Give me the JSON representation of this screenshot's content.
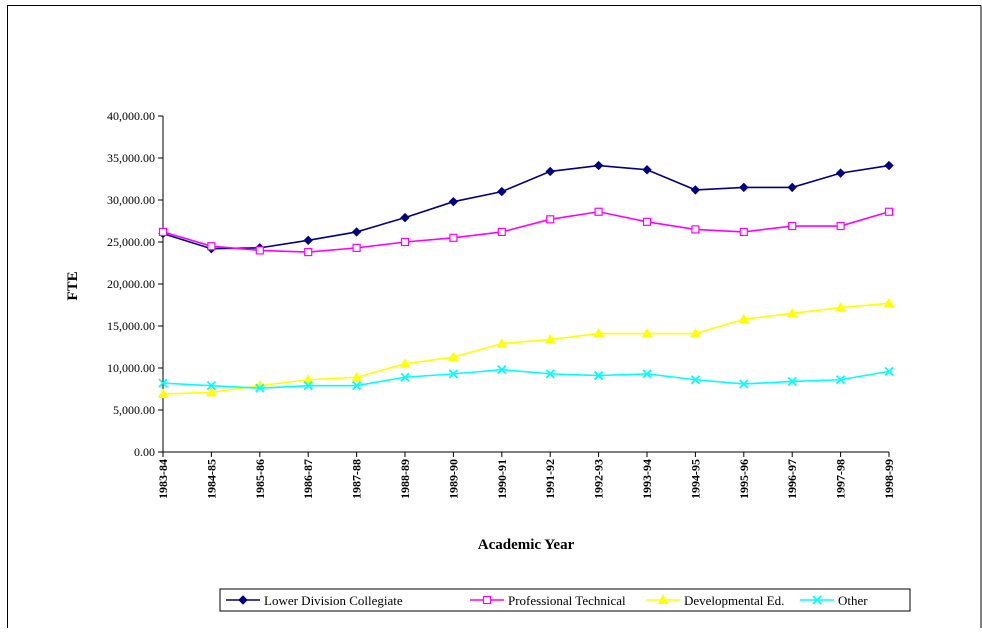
{
  "chart_data": {
    "type": "line",
    "title": "",
    "xlabel": "Academic Year",
    "ylabel": "FTE",
    "ylim": [
      0,
      40000
    ],
    "y_ticks": [
      "0.00",
      "5,000.00",
      "10,000.00",
      "15,000.00",
      "20,000.00",
      "25,000.00",
      "30,000.00",
      "35,000.00",
      "40,000.00"
    ],
    "y_tick_values": [
      0,
      5000,
      10000,
      15000,
      20000,
      25000,
      30000,
      35000,
      40000
    ],
    "categories": [
      "1983-84",
      "1984-85",
      "1985-86",
      "1986-87",
      "1987-88",
      "1988-89",
      "1989-90",
      "1990-91",
      "1991-92",
      "1992-93",
      "1993-94",
      "1994-95",
      "1995-96",
      "1996-97",
      "1997-98",
      "1998-99"
    ],
    "grid": false,
    "legend_position": "bottom",
    "series": [
      {
        "name": "Lower Division Collegiate",
        "color": "#000080",
        "marker": "diamond",
        "values": [
          26000,
          24200,
          24300,
          25200,
          26200,
          27900,
          29800,
          31000,
          33400,
          34100,
          33600,
          31200,
          31500,
          31500,
          33200,
          34100
        ]
      },
      {
        "name": "Professional Technical",
        "color": "#FF00FF",
        "marker": "square",
        "values": [
          26200,
          24500,
          24000,
          23800,
          24300,
          25000,
          25500,
          26200,
          27700,
          28600,
          27400,
          26500,
          26200,
          26900,
          26900,
          28600
        ]
      },
      {
        "name": "Developmental Ed.",
        "color": "#FFFF00",
        "marker": "triangle",
        "values": [
          6900,
          7100,
          7900,
          8600,
          8900,
          10500,
          11300,
          12900,
          13400,
          14100,
          14100,
          14100,
          15800,
          16500,
          17200,
          17700
        ]
      },
      {
        "name": "Other",
        "color": "#00FFFF",
        "marker": "x",
        "values": [
          8200,
          7900,
          7600,
          7900,
          7900,
          8900,
          9300,
          9800,
          9300,
          9100,
          9300,
          8600,
          8100,
          8400,
          8600,
          9600
        ]
      }
    ]
  }
}
